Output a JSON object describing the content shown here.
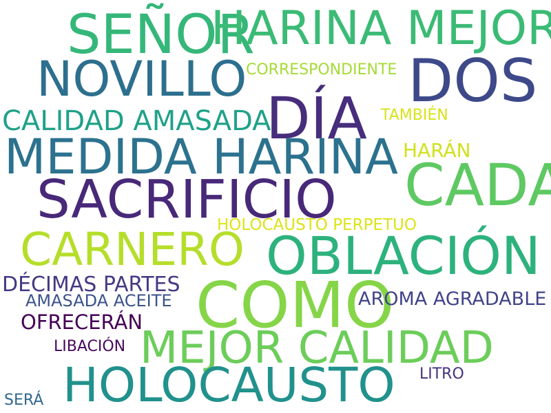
{
  "words": [
    {
      "text": "SEÑOR",
      "color": "#35b779"
    },
    {
      "text": "HARINA MEJOR",
      "color": "#3bbb75"
    },
    {
      "text": "NOVILLO",
      "color": "#2d6f8e"
    },
    {
      "text": "CORRESPONDIENTE",
      "color": "#a5db36"
    },
    {
      "text": "DOS",
      "color": "#3e4989"
    },
    {
      "text": "DÍA",
      "color": "#472d7b"
    },
    {
      "text": "CALIDAD AMASADA",
      "color": "#1fa188"
    },
    {
      "text": "TAMBIÉN",
      "color": "#d8e219"
    },
    {
      "text": "MEDIDA HARINA",
      "color": "#2c728e"
    },
    {
      "text": "HARÁN",
      "color": "#d0e11c"
    },
    {
      "text": "CADA",
      "color": "#5ec962"
    },
    {
      "text": "SACRIFICIO",
      "color": "#482878"
    },
    {
      "text": "HOLOCAUSTO PERPETUO",
      "color": "#dde318"
    },
    {
      "text": "CARNERO",
      "color": "#b5de2b"
    },
    {
      "text": "OBLACIÓN",
      "color": "#2db27d"
    },
    {
      "text": "DÉCIMAS PARTES",
      "color": "#443983"
    },
    {
      "text": "COMO",
      "color": "#86d549"
    },
    {
      "text": "AMASADA ACEITE",
      "color": "#3b528b"
    },
    {
      "text": "AROMA AGRADABLE",
      "color": "#414487"
    },
    {
      "text": "OFRECERÁN",
      "color": "#440154"
    },
    {
      "text": "MEJOR CALIDAD",
      "color": "#6ccd5a"
    },
    {
      "text": "LIBACIÓN",
      "color": "#46085c"
    },
    {
      "text": "HOLOCAUSTO",
      "color": "#21918c"
    },
    {
      "text": "LITRO",
      "color": "#46337e"
    },
    {
      "text": "SERÁ",
      "color": "#31688e"
    }
  ]
}
